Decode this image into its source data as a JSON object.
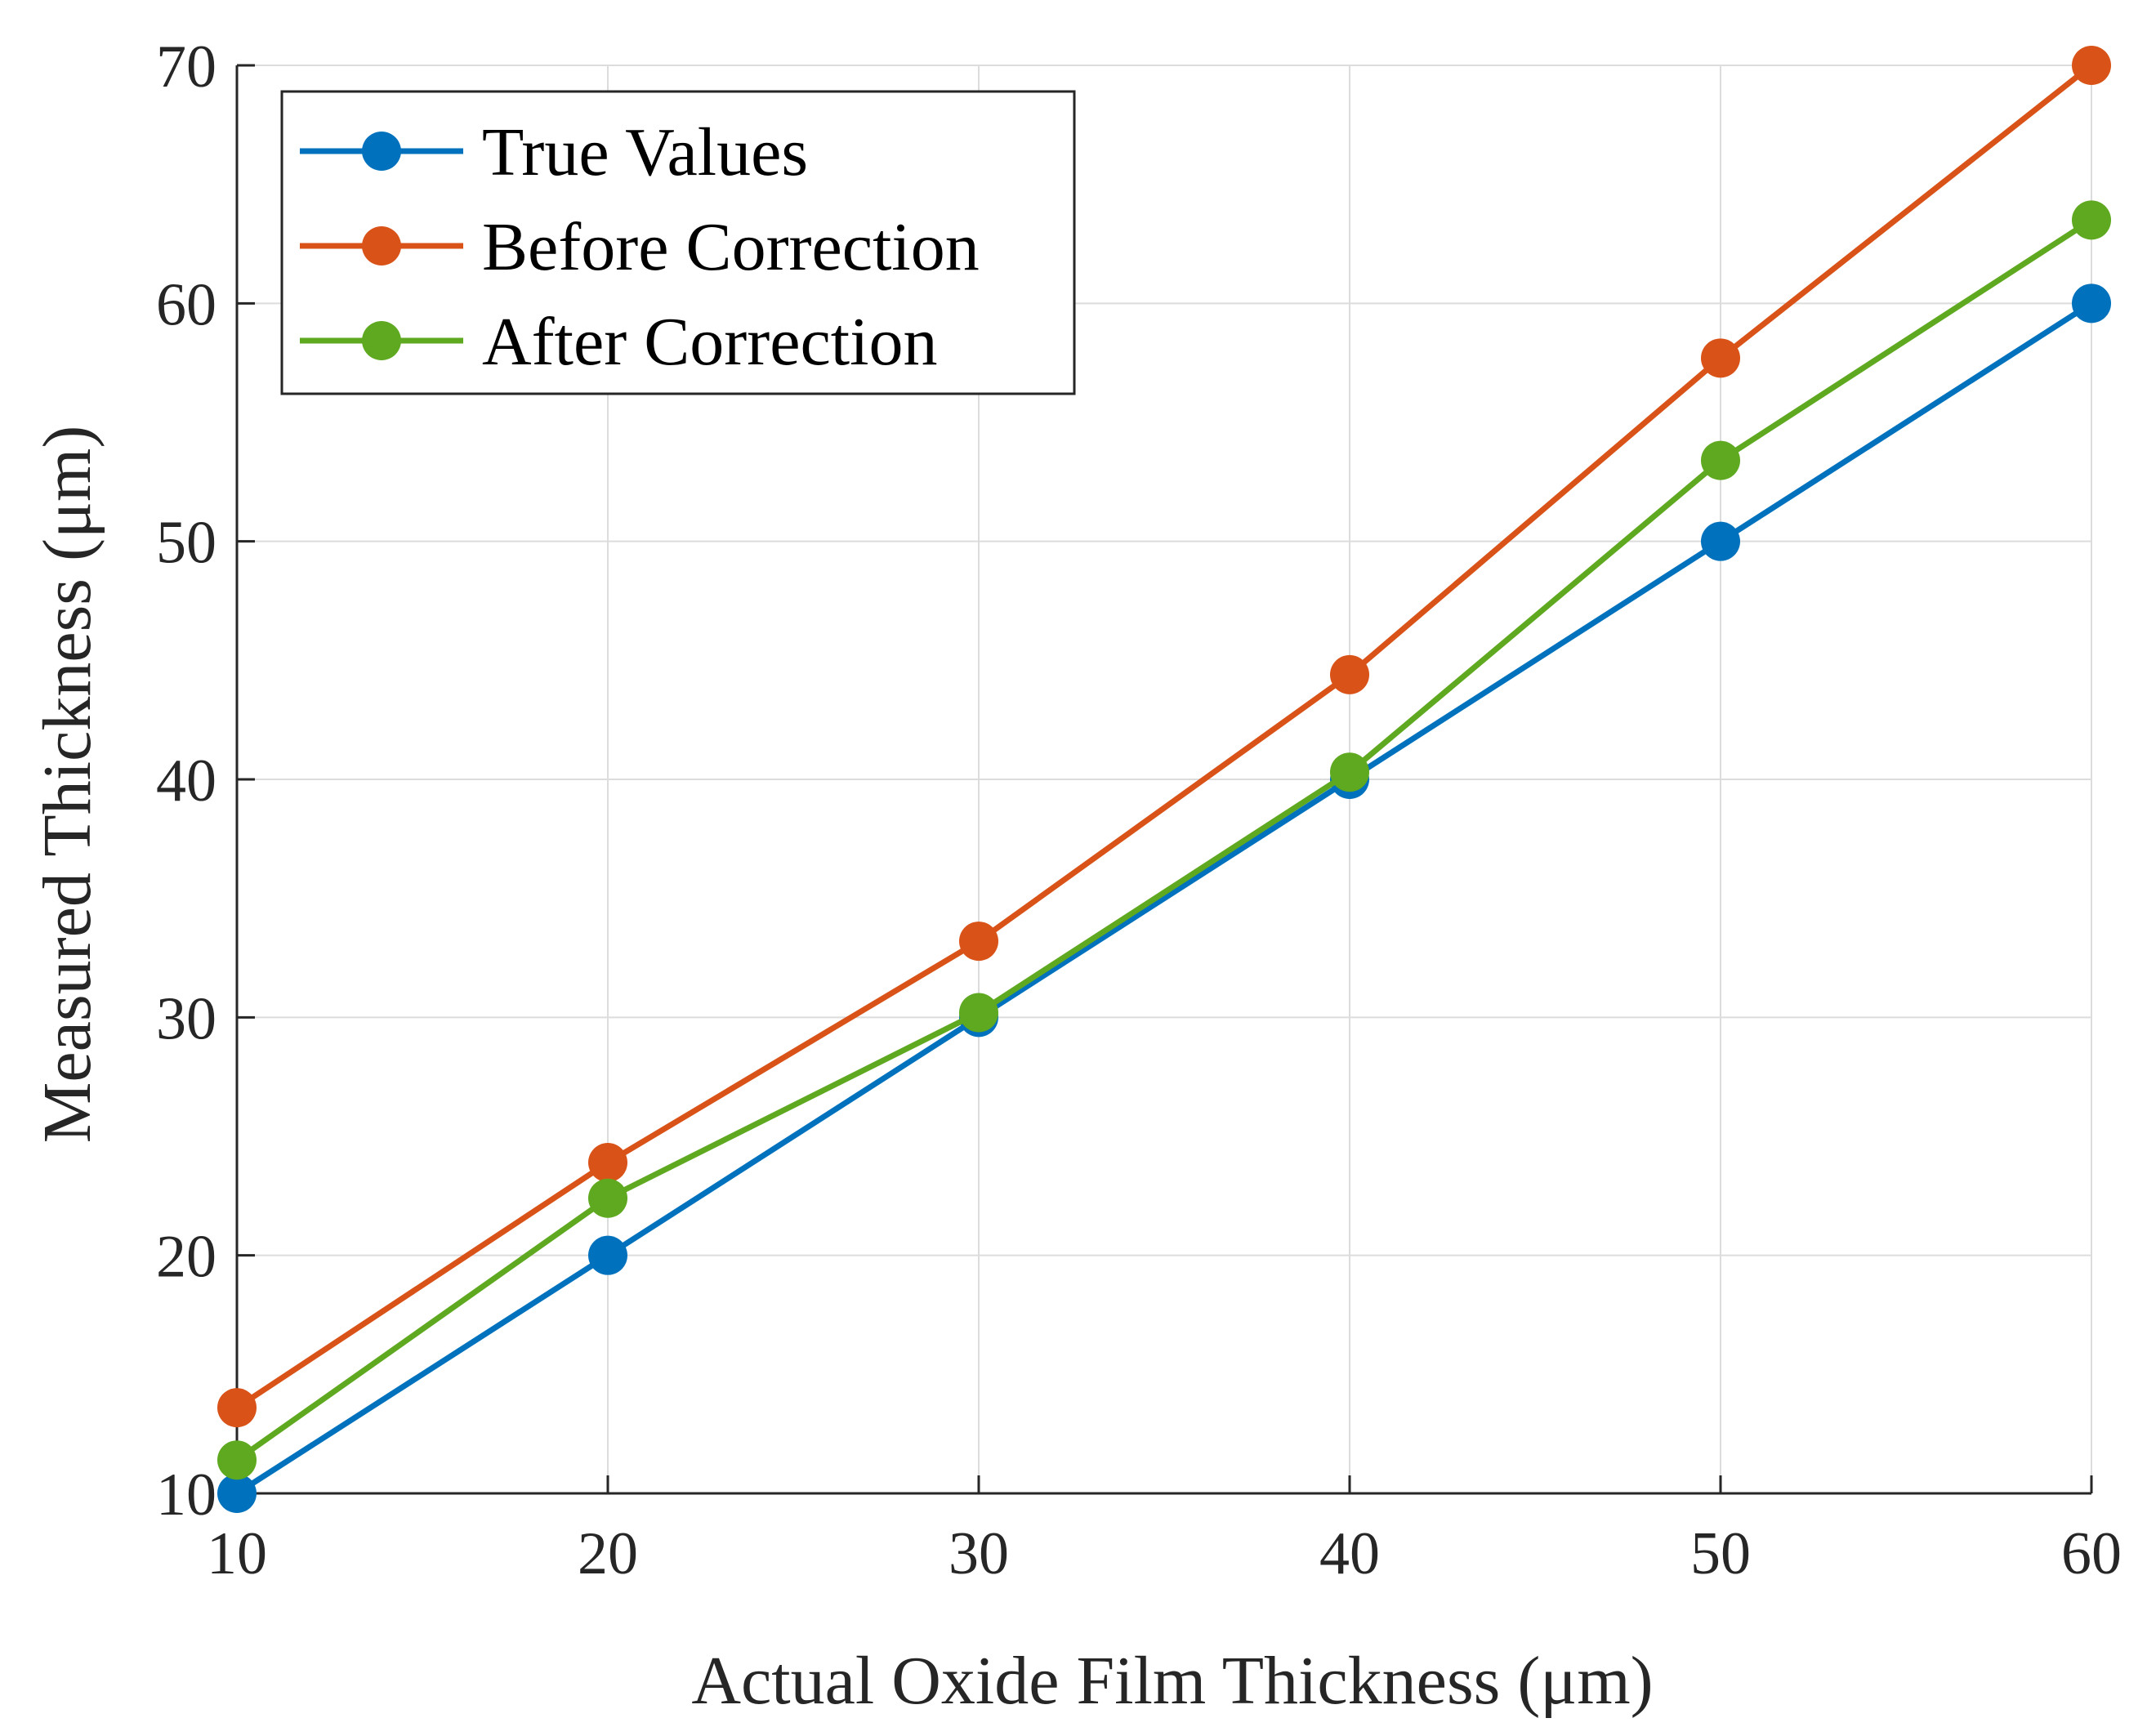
{
  "chart_data": {
    "type": "line",
    "title": "",
    "xlabel": "Actual Oxide Film Thickness (μm)",
    "ylabel": "Measured Thickness (μm)",
    "xlim": [
      10,
      60
    ],
    "ylim": [
      10,
      70
    ],
    "xticks": [
      "10",
      "20",
      "30",
      "40",
      "50",
      "60"
    ],
    "yticks": [
      "10",
      "20",
      "30",
      "40",
      "50",
      "60",
      "70"
    ],
    "grid": true,
    "legend_position": "top-left",
    "x": [
      10,
      20,
      30,
      40,
      50,
      60
    ],
    "series": [
      {
        "name": "True Values",
        "color": "#0072BD",
        "values": [
          10,
          20,
          30,
          40,
          50,
          60
        ]
      },
      {
        "name": "Before Correction",
        "color": "#D95319",
        "values": [
          13.6,
          23.9,
          33.2,
          44.4,
          57.7,
          70
        ]
      },
      {
        "name": "After Correction",
        "color": "#5EA920",
        "values": [
          11.4,
          22.4,
          30.2,
          40.3,
          53.4,
          63.5
        ]
      }
    ]
  }
}
